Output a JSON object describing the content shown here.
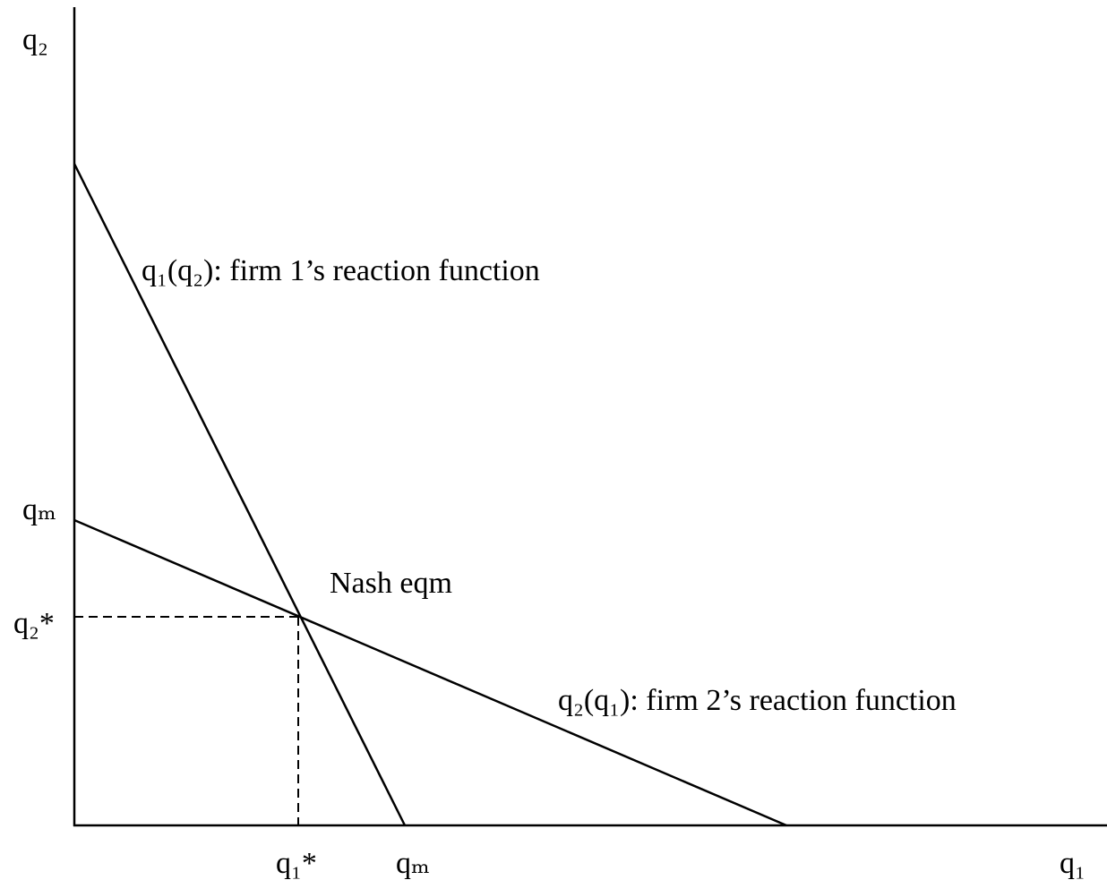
{
  "axes": {
    "y_label": "q₂",
    "x_label": "q₁"
  },
  "y_axis_marks": [
    "qₘ",
    "q₂*"
  ],
  "x_axis_marks": [
    "q₁*",
    "qₘ"
  ],
  "curves": [
    {
      "label": "q₁(q₂): firm 1’s reaction function"
    },
    {
      "label": "q₂(q₁): firm 2’s reaction function"
    }
  ],
  "equilibrium_label": "Nash eqm"
}
